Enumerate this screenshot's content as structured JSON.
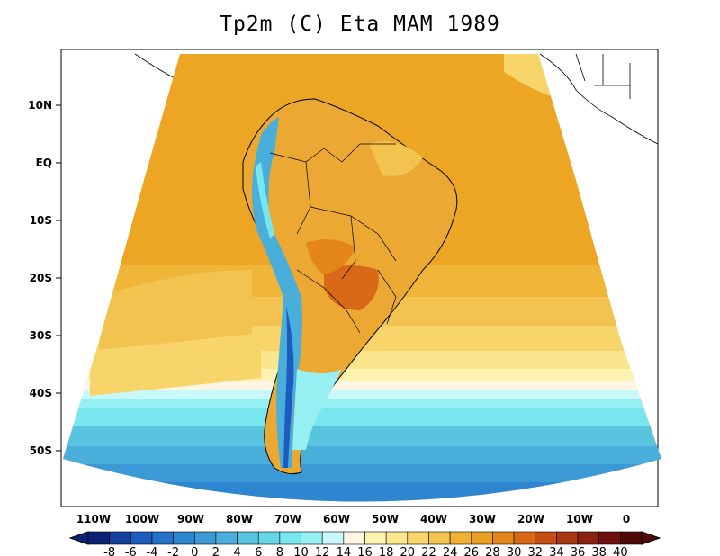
{
  "title": "Tp2m (C) Eta MAM 1989",
  "lat_ticks": [
    "10N",
    "EQ",
    "10S",
    "20S",
    "30S",
    "40S",
    "50S"
  ],
  "lon_ticks": [
    "110W",
    "100W",
    "90W",
    "80W",
    "70W",
    "60W",
    "50W",
    "40W",
    "30W",
    "20W",
    "10W",
    "0"
  ],
  "colorbar": {
    "labels": [
      "-8",
      "-6",
      "-4",
      "-2",
      "0",
      "2",
      "4",
      "6",
      "8",
      "10",
      "12",
      "14",
      "16",
      "18",
      "20",
      "22",
      "24",
      "26",
      "28",
      "30",
      "32",
      "34",
      "36",
      "38",
      "40"
    ],
    "colors": [
      "#0a2374",
      "#1640a0",
      "#1d5bbf",
      "#2472c9",
      "#2d86cf",
      "#3b99d6",
      "#4aaedb",
      "#58c4df",
      "#66d7e6",
      "#78e6ee",
      "#96f0f2",
      "#c8f8fa",
      "#fdf6e5",
      "#fef2b0",
      "#fce68d",
      "#f8d56a",
      "#f3c34f",
      "#efb136",
      "#eaa024",
      "#e4861a",
      "#d86916",
      "#c44e14",
      "#a83612",
      "#8a2210",
      "#6e120d",
      "#520909"
    ]
  }
}
